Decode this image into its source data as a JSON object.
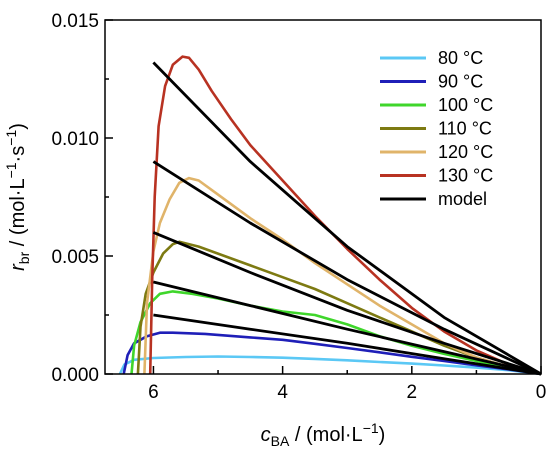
{
  "chart_data": {
    "type": "line",
    "xlabel": {
      "main": "c",
      "sub": "BA",
      "unit": " / (mol·L",
      "sup": "−1",
      "close": ")"
    },
    "ylabel": {
      "main": "r",
      "sub": "br",
      "unit": " / (mol·L",
      "sup1": "−1",
      "mid": "·s",
      "sup2": "−1",
      "close": ")"
    },
    "xlim": [
      6.75,
      0
    ],
    "ylim": [
      0,
      0.015
    ],
    "x_ticks": [
      6,
      4,
      2,
      0
    ],
    "x_tick_labels": [
      "6",
      "4",
      "2",
      "0"
    ],
    "y_ticks": [
      0,
      0.005,
      0.01,
      0.015
    ],
    "y_tick_labels": [
      "0.000",
      "0.005",
      "0.010",
      "0.015"
    ],
    "grid": false,
    "legend_position": "top-right",
    "series": [
      {
        "name": "80 °C",
        "color": "#5bc8f5",
        "points": [
          [
            6.52,
            0.0
          ],
          [
            6.45,
            0.0004
          ],
          [
            6.3,
            0.0006
          ],
          [
            6.0,
            0.00068
          ],
          [
            5.5,
            0.00072
          ],
          [
            5.0,
            0.00074
          ],
          [
            4.5,
            0.00072
          ],
          [
            4.0,
            0.00069
          ],
          [
            3.5,
            0.00064
          ],
          [
            3.0,
            0.00058
          ],
          [
            2.5,
            0.00051
          ],
          [
            2.0,
            0.00044
          ],
          [
            1.5,
            0.00036
          ],
          [
            1.0,
            0.00027
          ],
          [
            0.5,
            0.00016
          ],
          [
            0.0,
            0.0
          ]
        ]
      },
      {
        "name": "90 °C",
        "color": "#1f1fb8",
        "points": [
          [
            6.46,
            0.0
          ],
          [
            6.4,
            0.0008
          ],
          [
            6.3,
            0.0013
          ],
          [
            6.1,
            0.0016
          ],
          [
            5.9,
            0.00175
          ],
          [
            5.7,
            0.00175
          ],
          [
            5.2,
            0.0017
          ],
          [
            4.5,
            0.00155
          ],
          [
            4.0,
            0.00145
          ],
          [
            3.5,
            0.00128
          ],
          [
            3.0,
            0.0011
          ],
          [
            2.5,
            0.00092
          ],
          [
            2.0,
            0.00073
          ],
          [
            1.5,
            0.00055
          ],
          [
            1.0,
            0.00037
          ],
          [
            0.5,
            0.00019
          ],
          [
            0.0,
            0.0
          ]
        ]
      },
      {
        "name": "100 °C",
        "color": "#3fd62b",
        "points": [
          [
            6.34,
            0.0
          ],
          [
            6.3,
            0.0012
          ],
          [
            6.2,
            0.0022
          ],
          [
            6.05,
            0.003
          ],
          [
            5.9,
            0.0034
          ],
          [
            5.7,
            0.0035
          ],
          [
            5.4,
            0.0034
          ],
          [
            5.0,
            0.0032
          ],
          [
            4.5,
            0.0029
          ],
          [
            4.0,
            0.00265
          ],
          [
            3.5,
            0.0025
          ],
          [
            3.0,
            0.0021
          ],
          [
            2.5,
            0.0016
          ],
          [
            2.0,
            0.0012
          ],
          [
            1.5,
            0.00085
          ],
          [
            1.0,
            0.00055
          ],
          [
            0.5,
            0.00027
          ],
          [
            0.0,
            0.0
          ]
        ]
      },
      {
        "name": "110 °C",
        "color": "#7d7a12",
        "points": [
          [
            6.24,
            0.0
          ],
          [
            6.2,
            0.002
          ],
          [
            6.12,
            0.0034
          ],
          [
            6.0,
            0.0043
          ],
          [
            5.85,
            0.0051
          ],
          [
            5.7,
            0.0055
          ],
          [
            5.6,
            0.0056
          ],
          [
            5.3,
            0.0054
          ],
          [
            5.0,
            0.0051
          ],
          [
            4.5,
            0.0046
          ],
          [
            4.0,
            0.0041
          ],
          [
            3.5,
            0.0036
          ],
          [
            3.0,
            0.003
          ],
          [
            2.5,
            0.0024
          ],
          [
            2.0,
            0.0018
          ],
          [
            1.5,
            0.0012
          ],
          [
            1.0,
            0.0007
          ],
          [
            0.5,
            0.0003
          ],
          [
            0.0,
            0.0
          ]
        ]
      },
      {
        "name": "120 °C",
        "color": "#e0b46a",
        "points": [
          [
            6.14,
            0.0
          ],
          [
            6.1,
            0.003
          ],
          [
            6.0,
            0.0052
          ],
          [
            5.9,
            0.0064
          ],
          [
            5.75,
            0.0074
          ],
          [
            5.6,
            0.0081
          ],
          [
            5.45,
            0.0083
          ],
          [
            5.3,
            0.0082
          ],
          [
            5.0,
            0.0076
          ],
          [
            4.5,
            0.0066
          ],
          [
            4.0,
            0.0057
          ],
          [
            3.5,
            0.0047
          ],
          [
            3.0,
            0.0038
          ],
          [
            2.5,
            0.0029
          ],
          [
            2.0,
            0.0021
          ],
          [
            1.5,
            0.0013
          ],
          [
            1.0,
            0.0007
          ],
          [
            0.5,
            0.0003
          ],
          [
            0.0,
            0.0
          ]
        ]
      },
      {
        "name": "130 °C",
        "color": "#b83222",
        "points": [
          [
            6.05,
            0.0
          ],
          [
            6.02,
            0.004
          ],
          [
            5.98,
            0.0075
          ],
          [
            5.92,
            0.0105
          ],
          [
            5.82,
            0.0122
          ],
          [
            5.7,
            0.0131
          ],
          [
            5.55,
            0.01345
          ],
          [
            5.45,
            0.0134
          ],
          [
            5.3,
            0.0129
          ],
          [
            5.1,
            0.012
          ],
          [
            4.8,
            0.0108
          ],
          [
            4.5,
            0.0097
          ],
          [
            4.0,
            0.0082
          ],
          [
            3.5,
            0.0067
          ],
          [
            3.0,
            0.0053
          ],
          [
            2.5,
            0.004
          ],
          [
            2.0,
            0.0028
          ],
          [
            1.5,
            0.0018
          ],
          [
            1.0,
            0.001
          ],
          [
            0.5,
            0.0004
          ],
          [
            0.0,
            0.0
          ]
        ]
      },
      {
        "name": "model",
        "color": "#000000",
        "lines": [
          [
            [
              6.0,
              0.0132
            ],
            [
              4.5,
              0.009
            ],
            [
              3.0,
              0.0054
            ],
            [
              1.5,
              0.0024
            ],
            [
              0.0,
              0.0
            ]
          ],
          [
            [
              6.0,
              0.009
            ],
            [
              4.5,
              0.0064
            ],
            [
              3.0,
              0.004
            ],
            [
              1.5,
              0.0019
            ],
            [
              0.0,
              0.0
            ]
          ],
          [
            [
              6.0,
              0.006
            ],
            [
              4.5,
              0.0043
            ],
            [
              3.0,
              0.0027
            ],
            [
              1.5,
              0.0013
            ],
            [
              0.0,
              0.0
            ]
          ],
          [
            [
              6.0,
              0.0039
            ],
            [
              4.5,
              0.0029
            ],
            [
              3.0,
              0.0019
            ],
            [
              1.5,
              0.00095
            ],
            [
              0.0,
              0.0
            ]
          ],
          [
            [
              6.0,
              0.0025
            ],
            [
              4.5,
              0.0019
            ],
            [
              3.0,
              0.0013
            ],
            [
              1.5,
              0.00065
            ],
            [
              0.0,
              0.0
            ]
          ]
        ]
      }
    ]
  }
}
